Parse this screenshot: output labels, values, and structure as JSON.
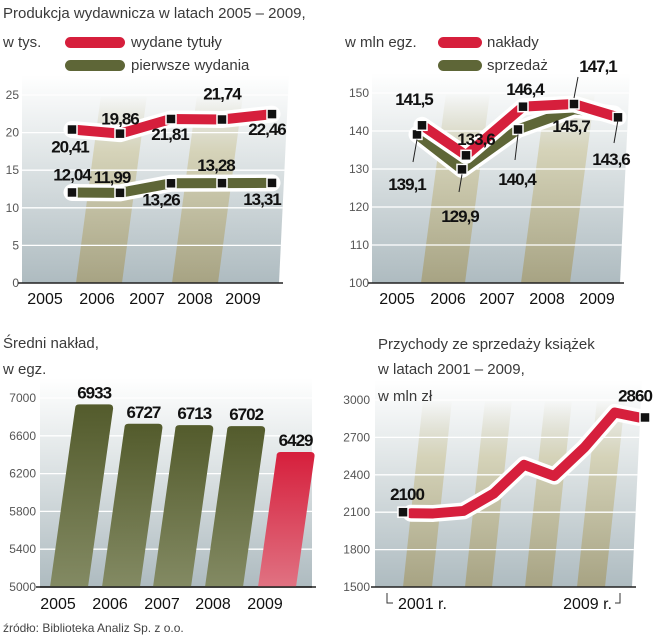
{
  "colors": {
    "red": "#d61f3c",
    "olive": "#5e6637",
    "grid": "#ffffff",
    "axis": "#222222"
  },
  "source": "źródło: Biblioteka Analiz Sp. z o.o.",
  "chart_data": [
    {
      "type": "line",
      "title": "Produkcja wydawnicza w latach 2005 – 2009,",
      "unit": "w tys.",
      "categories": [
        "2005",
        "2006",
        "2007",
        "2008",
        "2009"
      ],
      "ylim": [
        0,
        25
      ],
      "yticks": [
        0,
        5,
        10,
        15,
        20,
        25
      ],
      "grid": true,
      "legend": "top",
      "series": [
        {
          "name": "wydane tytuły",
          "color": "#d61f3c",
          "values": [
            20.41,
            19.86,
            21.81,
            21.74,
            22.46
          ],
          "labels": [
            "20,41",
            "19,86",
            "21,81",
            "21,74",
            "22,46"
          ]
        },
        {
          "name": "pierwsze wydania",
          "color": "#5e6637",
          "values": [
            12.04,
            11.99,
            13.26,
            13.28,
            13.31
          ],
          "labels": [
            "12,04",
            "11,99",
            "13,26",
            "13,28",
            "13,31"
          ]
        }
      ]
    },
    {
      "type": "line",
      "unit": "w mln egz.",
      "categories": [
        "2005",
        "2006",
        "2007",
        "2008",
        "2009"
      ],
      "ylim": [
        100,
        150
      ],
      "yticks": [
        100,
        110,
        120,
        130,
        140,
        150
      ],
      "grid": true,
      "legend": "top",
      "series": [
        {
          "name": "nakłady",
          "color": "#d61f3c",
          "values": [
            141.5,
            133.6,
            146.4,
            147.1,
            143.6
          ],
          "labels": [
            "141,5",
            "133,6",
            "146,4",
            "147,1",
            "143,6"
          ]
        },
        {
          "name": "sprzedaż",
          "color": "#5e6637",
          "values": [
            139.1,
            129.9,
            140.4,
            145.7,
            null
          ],
          "labels": [
            "139,1",
            "129,9",
            "140,4",
            "145,7",
            ""
          ]
        }
      ]
    },
    {
      "type": "bar",
      "title": "Średni nakład,",
      "unit": "w egz.",
      "categories": [
        "2005",
        "2006",
        "2007",
        "2008",
        "2009"
      ],
      "values": [
        6933,
        6727,
        6713,
        6702,
        6429
      ],
      "labels": [
        "6933",
        "6727",
        "6713",
        "6702",
        "6429"
      ],
      "bar_colors": [
        "#5e6637",
        "#5e6637",
        "#5e6637",
        "#5e6637",
        "#d61f3c"
      ],
      "ylim": [
        5000,
        7000
      ],
      "yticks": [
        5000,
        5400,
        5800,
        6200,
        6600,
        7000
      ],
      "grid": true
    },
    {
      "type": "line",
      "title": "Przychody ze sprzedaży książek",
      "subtitle": "w latach 2001 – 2009,",
      "unit": "w mln zł",
      "x": [
        2001,
        2002,
        2003,
        2004,
        2005,
        2006,
        2007,
        2008,
        2009
      ],
      "x_labels": [
        "2001 r.",
        "2009 r."
      ],
      "ylim": [
        1500,
        3000
      ],
      "yticks": [
        1500,
        1800,
        2100,
        2400,
        2700,
        3000
      ],
      "grid": true,
      "series": [
        {
          "color": "#d61f3c",
          "values": [
            2100,
            2090,
            2110,
            2250,
            2480,
            2390,
            2620,
            2900,
            2860
          ],
          "labels": [
            "2100",
            "",
            "",
            "",
            "",
            "",
            "",
            "",
            "2860"
          ]
        }
      ]
    }
  ]
}
